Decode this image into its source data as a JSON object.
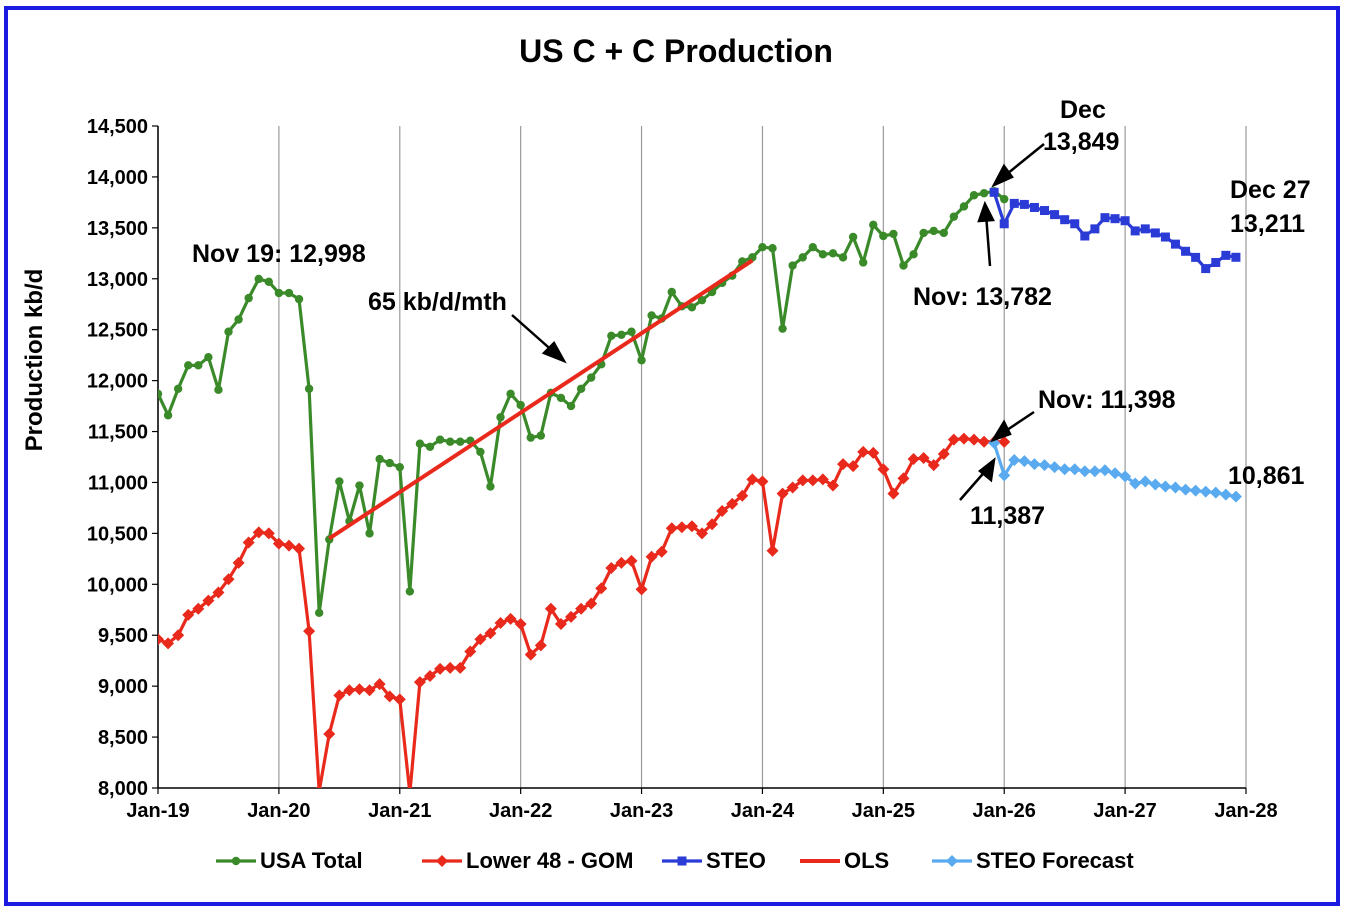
{
  "chart_data": {
    "type": "line",
    "title": "US C + C Production",
    "xlabel": "",
    "ylabel": "Production kb/d",
    "ylim": [
      8000,
      14500
    ],
    "yticks": [
      8000,
      8500,
      9000,
      9500,
      10000,
      10500,
      11000,
      11500,
      12000,
      12500,
      13000,
      13500,
      14000,
      14500
    ],
    "ytick_labels": [
      "8,000",
      "8,500",
      "9,000",
      "9,500",
      "10,000",
      "10,500",
      "11,000",
      "11,500",
      "12,000",
      "12,500",
      "13,000",
      "13,500",
      "14,000",
      "14,500"
    ],
    "xlim_months": [
      0,
      108
    ],
    "xtick_months": [
      0,
      12,
      24,
      36,
      48,
      60,
      72,
      84,
      96,
      108
    ],
    "xtick_labels": [
      "Jan-19",
      "Jan-20",
      "Jan-21",
      "Jan-22",
      "Jan-23",
      "Jan-24",
      "Jan-25",
      "Jan-26",
      "Jan-27",
      "Jan-28"
    ],
    "grid": "vertical",
    "legend_position": "bottom",
    "series": [
      {
        "name": "USA Total",
        "color": "#3a8a2a",
        "marker": "circle",
        "start_month": 0,
        "values": [
          11870,
          11660,
          11920,
          12150,
          12150,
          12230,
          11910,
          12480,
          12600,
          12810,
          12998,
          12970,
          12860,
          12860,
          12800,
          11920,
          9720,
          10440,
          11010,
          10620,
          10970,
          10500,
          11230,
          11190,
          11150,
          9930,
          11380,
          11350,
          11420,
          11400,
          11400,
          11410,
          11300,
          10960,
          11640,
          11870,
          11760,
          11440,
          11460,
          11880,
          11830,
          11750,
          11920,
          12030,
          12160,
          12440,
          12450,
          12480,
          12200,
          12640,
          12610,
          12870,
          12730,
          12720,
          12790,
          12870,
          12960,
          13030,
          13170,
          13210,
          13310,
          13300,
          12510,
          13130,
          13210,
          13310,
          13240,
          13250,
          13210,
          13410,
          13160,
          13530,
          13420,
          13440,
          13130,
          13240,
          13450,
          13470,
          13450,
          13610,
          13710,
          13820,
          13840,
          13860,
          13782
        ]
      },
      {
        "name": "Lower 48 - GOM",
        "color": "#e8291b",
        "marker": "diamond",
        "start_month": 0,
        "values": [
          9460,
          9420,
          9500,
          9700,
          9760,
          9840,
          9920,
          10050,
          10210,
          10410,
          10510,
          10500,
          10400,
          10380,
          10350,
          9540,
          7970,
          8530,
          8910,
          8960,
          8970,
          8960,
          9020,
          8900,
          8870,
          7950,
          9040,
          9100,
          9170,
          9180,
          9180,
          9340,
          9460,
          9520,
          9620,
          9660,
          9610,
          9310,
          9400,
          9760,
          9610,
          9680,
          9760,
          9810,
          9960,
          10160,
          10210,
          10230,
          9950,
          10270,
          10320,
          10550,
          10560,
          10570,
          10500,
          10590,
          10720,
          10790,
          10870,
          11030,
          11010,
          10330,
          10890,
          10950,
          11020,
          11020,
          11030,
          10970,
          11180,
          11160,
          11300,
          11290,
          11130,
          10890,
          11040,
          11230,
          11240,
          11170,
          11280,
          11420,
          11430,
          11420,
          11400,
          11400,
          11398
        ]
      },
      {
        "name": "STEO",
        "color": "#2b3bd6",
        "marker": "square",
        "start_month": 83,
        "values": [
          13849,
          13540,
          13740,
          13730,
          13700,
          13670,
          13630,
          13580,
          13540,
          13420,
          13490,
          13600,
          13590,
          13570,
          13470,
          13490,
          13450,
          13410,
          13340,
          13270,
          13210,
          13100,
          13160,
          13230,
          13211
        ]
      },
      {
        "name": "OLS",
        "color": "#e8291b",
        "marker": "none",
        "start_month": 17,
        "end_month": 59,
        "values": [
          10450,
          13180
        ]
      },
      {
        "name": "STEO Forecast",
        "color": "#5aaaf0",
        "marker": "diamond",
        "start_month": 83,
        "values": [
          11387,
          11070,
          11220,
          11210,
          11180,
          11170,
          11150,
          11130,
          11130,
          11110,
          11110,
          11120,
          11090,
          11060,
          10990,
          11010,
          10980,
          10960,
          10950,
          10930,
          10920,
          10910,
          10900,
          10880,
          10861
        ]
      }
    ],
    "annotations": [
      {
        "text": "Nov 19: 12,998"
      },
      {
        "text": "65 kb/d/mth"
      },
      {
        "text": "Dec"
      },
      {
        "text": "13,849"
      },
      {
        "text": "Nov: 13,782"
      },
      {
        "text": "Dec 27"
      },
      {
        "text": "13,211"
      },
      {
        "text": "Nov: 11,398"
      },
      {
        "text": "11,387"
      },
      {
        "text": "10,861"
      }
    ]
  }
}
